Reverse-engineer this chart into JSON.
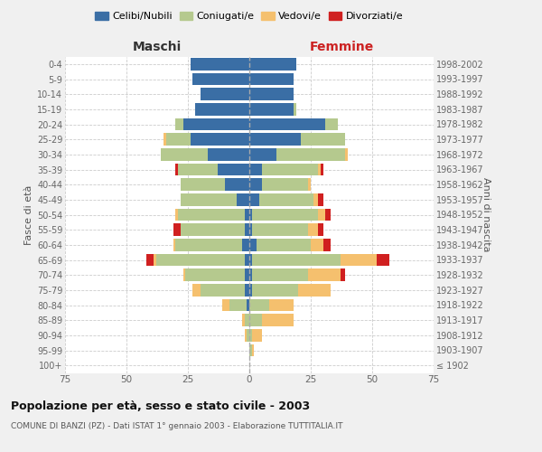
{
  "age_groups": [
    "100+",
    "95-99",
    "90-94",
    "85-89",
    "80-84",
    "75-79",
    "70-74",
    "65-69",
    "60-64",
    "55-59",
    "50-54",
    "45-49",
    "40-44",
    "35-39",
    "30-34",
    "25-29",
    "20-24",
    "15-19",
    "10-14",
    "5-9",
    "0-4"
  ],
  "birth_years": [
    "≤ 1902",
    "1903-1907",
    "1908-1912",
    "1913-1917",
    "1918-1922",
    "1923-1927",
    "1928-1932",
    "1933-1937",
    "1938-1942",
    "1943-1947",
    "1948-1952",
    "1953-1957",
    "1958-1962",
    "1963-1967",
    "1968-1972",
    "1973-1977",
    "1978-1982",
    "1983-1987",
    "1988-1992",
    "1993-1997",
    "1998-2002"
  ],
  "maschi": {
    "celibi": [
      0,
      0,
      0,
      0,
      1,
      2,
      2,
      2,
      3,
      2,
      2,
      5,
      10,
      13,
      17,
      24,
      27,
      22,
      20,
      23,
      24
    ],
    "coniugati": [
      0,
      0,
      1,
      2,
      7,
      18,
      24,
      36,
      27,
      26,
      27,
      23,
      18,
      16,
      19,
      10,
      3,
      0,
      0,
      0,
      0
    ],
    "vedovi": [
      0,
      0,
      1,
      1,
      3,
      3,
      1,
      1,
      1,
      0,
      1,
      0,
      0,
      0,
      0,
      1,
      0,
      0,
      0,
      0,
      0
    ],
    "divorziati": [
      0,
      0,
      0,
      0,
      0,
      0,
      0,
      3,
      0,
      3,
      0,
      0,
      0,
      1,
      0,
      0,
      0,
      0,
      0,
      0,
      0
    ]
  },
  "femmine": {
    "nubili": [
      0,
      0,
      0,
      0,
      0,
      1,
      1,
      1,
      3,
      1,
      1,
      4,
      5,
      5,
      11,
      21,
      31,
      18,
      18,
      18,
      19
    ],
    "coniugate": [
      0,
      1,
      1,
      5,
      8,
      19,
      23,
      36,
      22,
      23,
      27,
      22,
      19,
      23,
      28,
      18,
      5,
      1,
      0,
      0,
      0
    ],
    "vedove": [
      0,
      1,
      4,
      13,
      10,
      13,
      13,
      15,
      5,
      4,
      3,
      2,
      1,
      1,
      1,
      0,
      0,
      0,
      0,
      0,
      0
    ],
    "divorziate": [
      0,
      0,
      0,
      0,
      0,
      0,
      2,
      5,
      3,
      2,
      2,
      2,
      0,
      1,
      0,
      0,
      0,
      0,
      0,
      0,
      0
    ]
  },
  "colors": {
    "celibi": "#3a6ea5",
    "coniugati": "#b5c98e",
    "vedovi": "#f5c06e",
    "divorziati": "#d02020"
  },
  "xlim": 75,
  "title": "Popolazione per età, sesso e stato civile - 2003",
  "subtitle": "COMUNE DI BANZI (PZ) - Dati ISTAT 1° gennaio 2003 - Elaborazione TUTTITALIA.IT",
  "ylabel_left": "Fasce di età",
  "ylabel_right": "Anni di nascita",
  "xlabel_left": "Maschi",
  "xlabel_right": "Femmine",
  "bg_color": "#f0f0f0",
  "plot_bg": "#ffffff",
  "grid_color": "#cccccc"
}
